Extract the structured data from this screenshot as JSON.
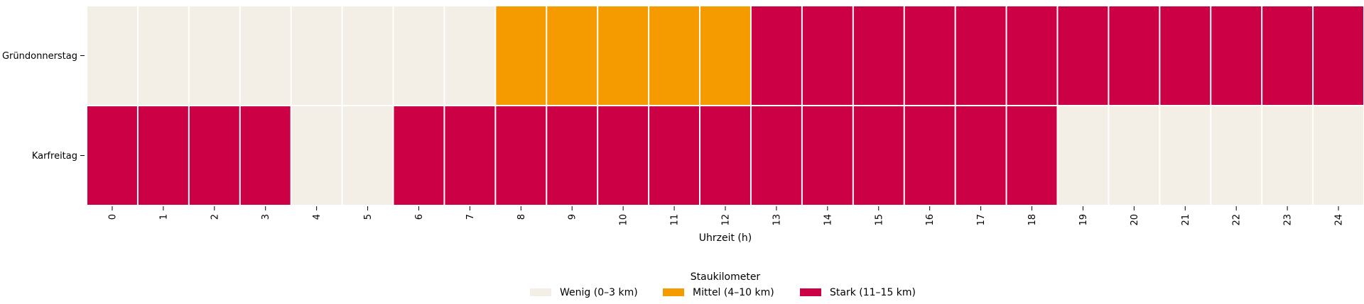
{
  "chart_data": {
    "type": "heatmap",
    "title": "",
    "xlabel": "Uhrzeit (h)",
    "ylabel": "",
    "x": [
      0,
      1,
      2,
      3,
      4,
      5,
      6,
      7,
      8,
      9,
      10,
      11,
      12,
      13,
      14,
      15,
      16,
      17,
      18,
      19,
      20,
      21,
      22,
      23,
      24
    ],
    "y": [
      "Gründonnerstag",
      "Karfreitag"
    ],
    "values": [
      [
        0,
        0,
        0,
        0,
        0,
        0,
        0,
        0,
        1,
        1,
        1,
        1,
        1,
        2,
        2,
        2,
        2,
        2,
        2,
        2,
        2,
        2,
        2,
        2,
        2
      ],
      [
        2,
        2,
        2,
        2,
        0,
        0,
        2,
        2,
        2,
        2,
        2,
        2,
        2,
        2,
        2,
        2,
        2,
        2,
        2,
        0,
        0,
        0,
        0,
        0,
        0
      ]
    ],
    "categories_legend": [
      {
        "label": "Wenig (0–3 km)",
        "color": "#f4efe6"
      },
      {
        "label": "Mittel (4–10 km)",
        "color": "#f59b00"
      },
      {
        "label": "Stark (11–15 km)",
        "color": "#cc0044"
      }
    ],
    "legend": {
      "title": "Staukilometer",
      "placement": "bottom-center"
    },
    "grid": false
  }
}
